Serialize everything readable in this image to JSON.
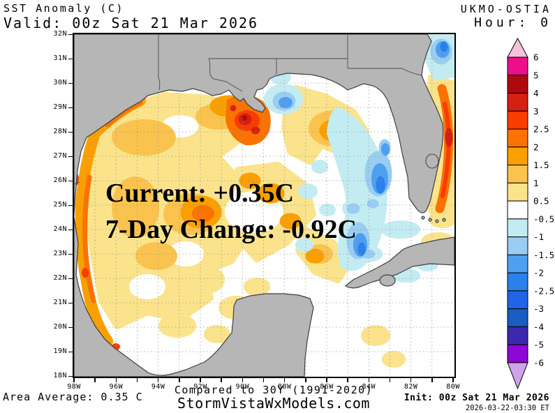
{
  "header": {
    "product_title": "SST Anomaly (C)",
    "valid_line": "Valid: 00z Sat 21 Mar 2026",
    "model_name": "UKMO-OSTIA",
    "hour_line": "Hour: 0"
  },
  "overlay": {
    "current": "Current: +0.35C",
    "seven_day_change": "7-Day Change: -0.92C"
  },
  "axes": {
    "lat_labels": [
      "32N",
      "31N",
      "30N",
      "29N",
      "28N",
      "27N",
      "26N",
      "25N",
      "24N",
      "23N",
      "22N",
      "21N",
      "20N",
      "19N",
      "18N"
    ],
    "lon_labels": [
      "98W",
      "96W",
      "94W",
      "92W",
      "90W",
      "88W",
      "86W",
      "84W",
      "82W",
      "80W"
    ]
  },
  "colorbar": {
    "boundary_labels": [
      "6",
      "5",
      "4",
      "3",
      "2.5",
      "2",
      "1.5",
      "1",
      "0.5",
      "-0.5",
      "-1",
      "-1.5",
      "-2",
      "-2.5",
      "-3",
      "-4",
      "-5",
      "-6"
    ],
    "segment_colors": [
      "#ec0e8a",
      "#ad0a10",
      "#d42111",
      "#f93c00",
      "#fa7200",
      "#fa9f00",
      "#fac34e",
      "#fae38b",
      "#ffffff",
      "#c2ecf2",
      "#99cdf2",
      "#4f9ff0",
      "#2a81ea",
      "#2263e8",
      "#1b5cc0",
      "#3c28ae",
      "#8d08d4"
    ],
    "over_color": "#f6c3da",
    "under_color": "#cfa3ea"
  },
  "footer": {
    "area_average": "Area Average: 0.35 C",
    "compared": "Compared to 30Y (1991-2020)",
    "site": "StormVistaWxModels.com",
    "init_line": "Init: 00z Sat 21 Mar 2026",
    "generated": "2026-03-22-03:30 ET"
  },
  "palette": {
    "land": "#b6b6b6",
    "coastline": "#3f3f3f",
    "water": "#ffffff",
    "grid_line": "#999999",
    "map_border": "#000000",
    "overlay_text": "#000000"
  },
  "chart_data": {
    "type": "heatmap",
    "title": "SST Anomaly (C)",
    "region": "Gulf of Mexico",
    "model": "UKMO-OSTIA",
    "valid_time": "00z Sat 21 Mar 2026",
    "forecast_hour": 0,
    "init_time": "00z Sat 21 Mar 2026",
    "generated": "2026-03-22-03:30 ET",
    "units": "C",
    "baseline": "30Y (1991-2020)",
    "area_average_c": 0.35,
    "current_anomaly_c": 0.35,
    "seven_day_change_c": -0.92,
    "lat_range": [
      "18N",
      "32N"
    ],
    "lon_range": [
      "98W",
      "80W"
    ],
    "colorbar_levels": [
      -6,
      -5,
      -4,
      -3,
      -2.5,
      -2,
      -1.5,
      -1,
      -0.5,
      0.5,
      1,
      1.5,
      2,
      2.5,
      3,
      4,
      5,
      6
    ],
    "grid": "1 degree dotted",
    "notable_features": [
      "warm +2 to +4C anomaly blob south of Mississippi delta near 28N 90W",
      "broad +0.5 to +2C anomalies across western Gulf and along Texas/Mexico coast",
      "-0.5 to -2.5C cool band off the Florida west coast shelf",
      "warm +2 to +3C Gulf Stream band along Florida Atlantic coast",
      "near-zero (white) anomalies across Bay of Campeche and southern Gulf"
    ]
  }
}
